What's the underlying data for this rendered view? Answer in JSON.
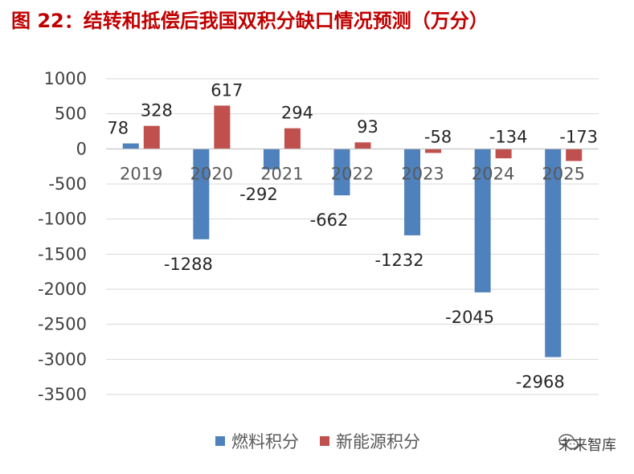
{
  "title": "图 22：结转和抵偿后我国双积分缺口情况预测（万分）",
  "watermark": "未来智库",
  "colors": {
    "fuel": "#4f81bd",
    "nev": "#c0504d",
    "grid": "#d9d9d9",
    "title": "#c00000"
  },
  "chart_data": {
    "type": "bar",
    "categories": [
      "2019",
      "2020",
      "2021",
      "2022",
      "2023",
      "2024",
      "2025"
    ],
    "series": [
      {
        "name": "燃料积分",
        "values": [
          78,
          -1288,
          -292,
          -662,
          -1232,
          -2045,
          -2968
        ]
      },
      {
        "name": "新能源积分",
        "values": [
          328,
          617,
          294,
          93,
          -58,
          -134,
          -173
        ]
      }
    ],
    "yticks": [
      1000,
      500,
      0,
      -500,
      -1000,
      -1500,
      -2000,
      -2500,
      -3000,
      -3500
    ],
    "ylim": [
      -3500,
      1000
    ],
    "grid": true,
    "legend": "bottom"
  }
}
